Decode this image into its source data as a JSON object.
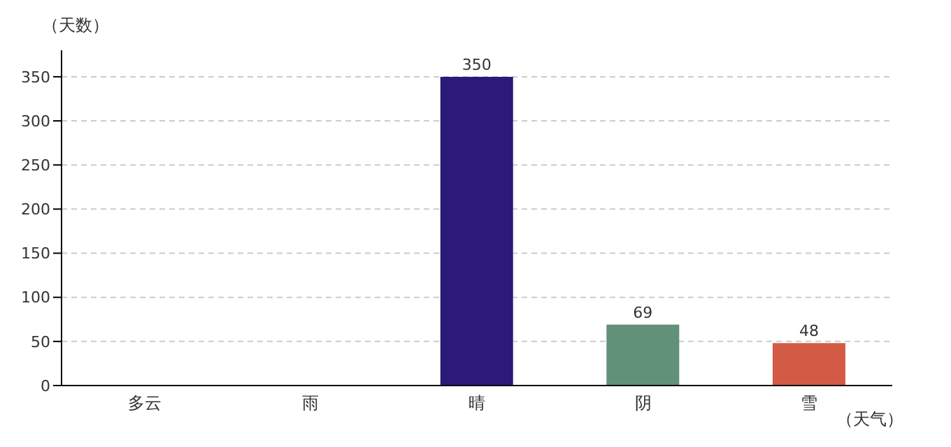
{
  "chart_data": {
    "type": "bar",
    "ylabel": "（天数）",
    "xlabel": "（天气）",
    "categories": [
      "多云",
      "雨",
      "晴",
      "阴",
      "雪"
    ],
    "values": [
      null,
      null,
      350,
      69,
      48
    ],
    "colors": [
      "#d7120c",
      "#a8006b",
      "#2c1a7a",
      "#62917a",
      "#d35a45"
    ],
    "value_labels": [
      null,
      null,
      "350",
      "69",
      "48"
    ],
    "ylim": [
      0,
      380
    ],
    "yticks": [
      0,
      50,
      100,
      150,
      200,
      250,
      300,
      350
    ],
    "grid": "y"
  }
}
